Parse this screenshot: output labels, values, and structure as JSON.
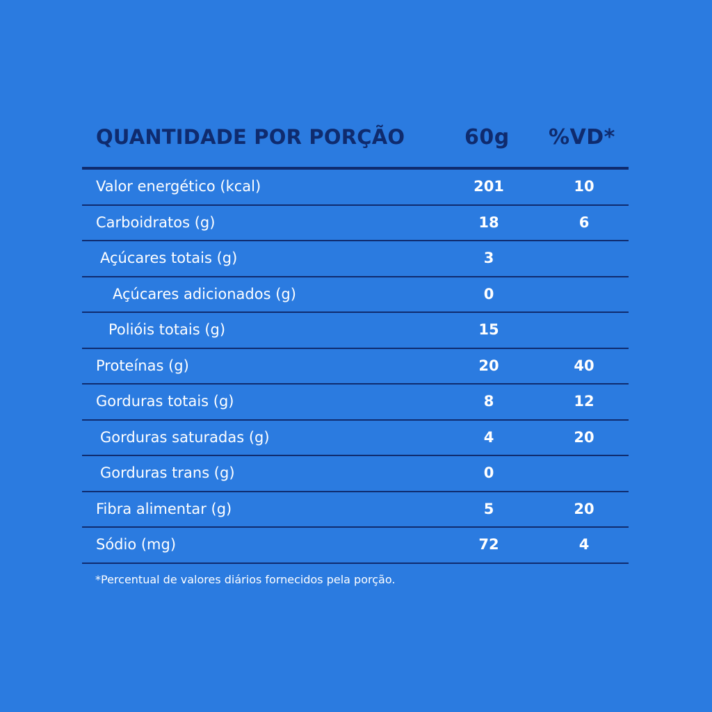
{
  "header": {
    "title": "QUANTIDADE POR PORÇÃO",
    "serving": "60g",
    "dv": "%VD*"
  },
  "rows": [
    {
      "name": "Valor energético (kcal)",
      "amount": "201",
      "dv": "10"
    },
    {
      "name": "Carboidratos (g)",
      "amount": "18",
      "dv": "6"
    },
    {
      "name": "Açúcares totais (g)",
      "amount": "3",
      "dv": ""
    },
    {
      "name": "Açúcares adicionados (g)",
      "amount": "0",
      "dv": ""
    },
    {
      "name": "Polióis totais (g)",
      "amount": "15",
      "dv": ""
    },
    {
      "name": "Proteínas (g)",
      "amount": "20",
      "dv": "40"
    },
    {
      "name": "Gorduras totais (g)",
      "amount": "8",
      "dv": "12"
    },
    {
      "name": "Gorduras saturadas (g)",
      "amount": "4",
      "dv": "20"
    },
    {
      "name": "Gorduras trans (g)",
      "amount": "0",
      "dv": ""
    },
    {
      "name": "Fibra alimentar (g)",
      "amount": "5",
      "dv": "20"
    },
    {
      "name": "Sódio (mg)",
      "amount": "72",
      "dv": "4"
    }
  ],
  "footnote": "*Percentual de valores diários fornecidos pela porção.",
  "colors": {
    "background": "#2b7be0",
    "header_text": "#0f2b6e",
    "rule": "#0f2b6e",
    "body_text": "#ffffff"
  }
}
